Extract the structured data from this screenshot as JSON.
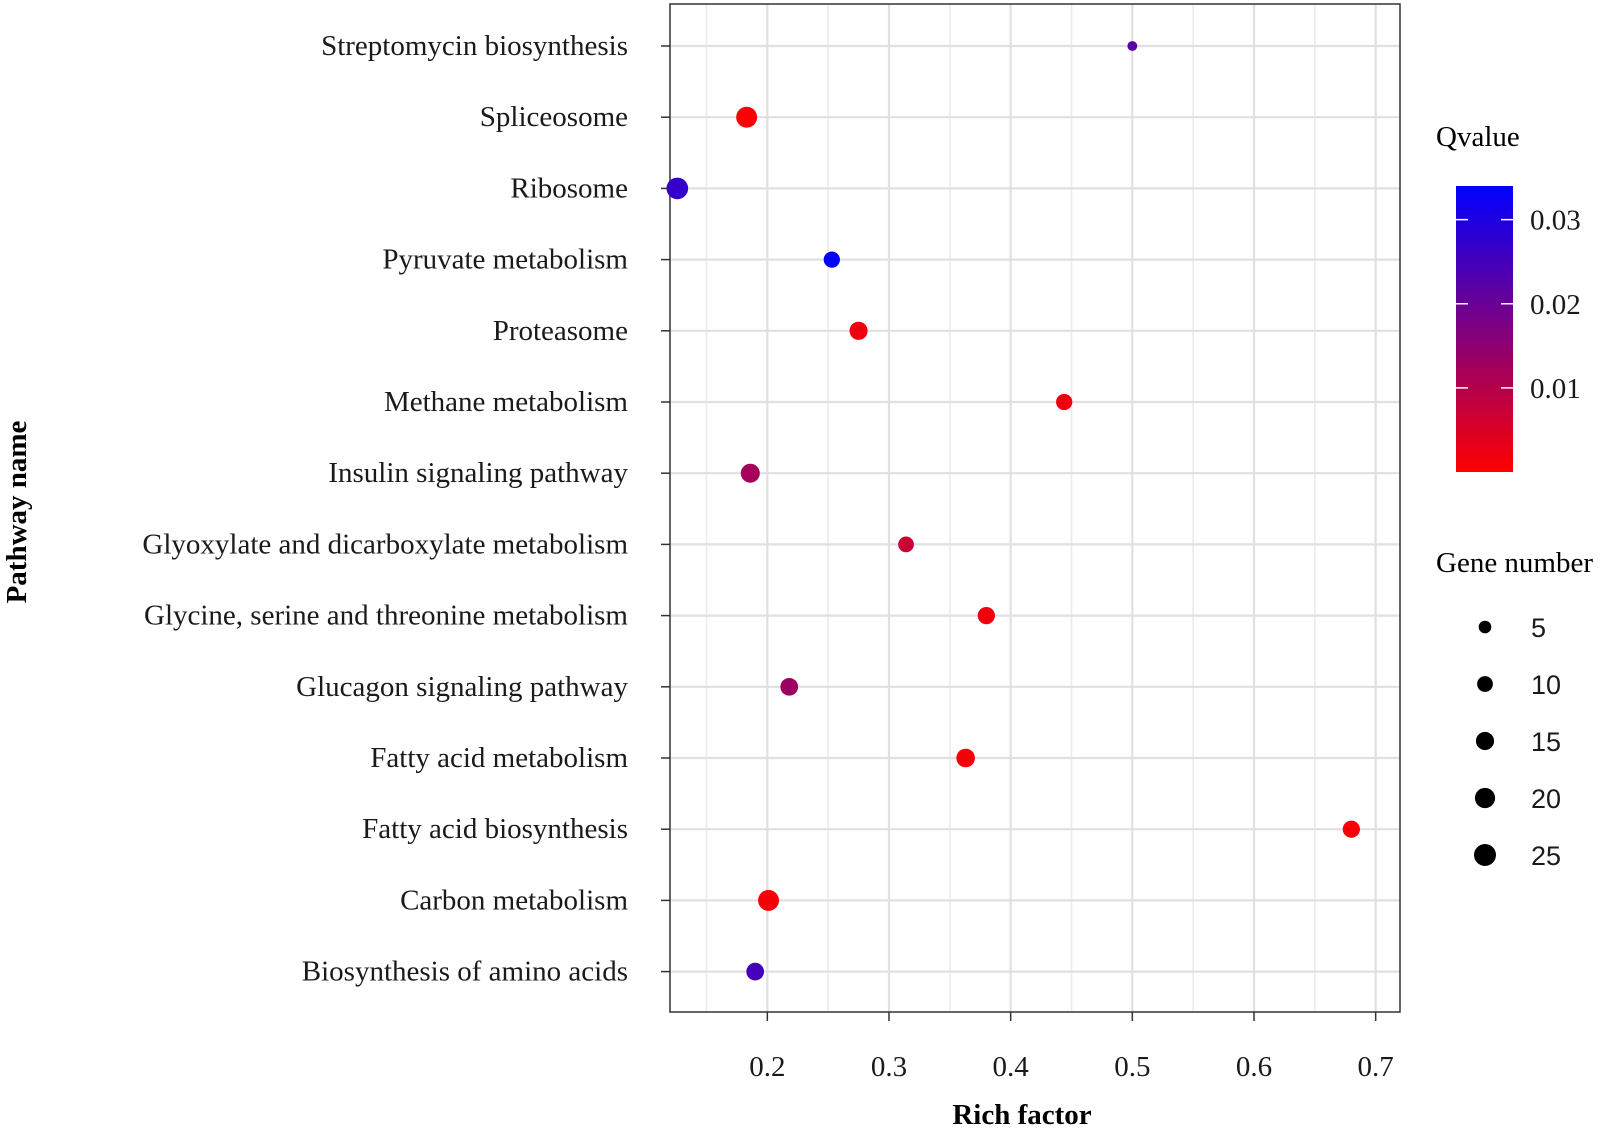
{
  "chart_data": {
    "type": "scatter",
    "title": "",
    "xlabel": "Rich factor",
    "ylabel": "Pathway name",
    "xlim": [
      0.12,
      0.72
    ],
    "xticks": [
      0.2,
      0.3,
      0.4,
      0.5,
      0.6,
      0.7
    ],
    "xtick_labels": [
      "0.2",
      "0.3",
      "0.4",
      "0.5",
      "0.6",
      "0.7"
    ],
    "grid": true,
    "categories": [
      "Streptomycin biosynthesis",
      "Spliceosome",
      "Ribosome",
      "Pyruvate metabolism",
      "Proteasome",
      "Methane metabolism",
      "Insulin signaling pathway",
      "Glyoxylate and dicarboxylate metabolism",
      "Glycine, serine and threonine metabolism",
      "Glucagon signaling pathway",
      "Fatty acid metabolism",
      "Fatty acid biosynthesis",
      "Carbon metabolism",
      "Biosynthesis of amino acids"
    ],
    "points": [
      {
        "pathway": "Streptomycin biosynthesis",
        "rich_factor": 0.5,
        "gene_number": 2,
        "qvalue": 0.022
      },
      {
        "pathway": "Spliceosome",
        "rich_factor": 0.183,
        "gene_number": 22,
        "qvalue": 0.0005
      },
      {
        "pathway": "Ribosome",
        "rich_factor": 0.126,
        "gene_number": 24,
        "qvalue": 0.027
      },
      {
        "pathway": "Pyruvate metabolism",
        "rich_factor": 0.253,
        "gene_number": 11,
        "qvalue": 0.034
      },
      {
        "pathway": "Proteasome",
        "rich_factor": 0.275,
        "gene_number": 15,
        "qvalue": 0.002
      },
      {
        "pathway": "Methane metabolism",
        "rich_factor": 0.444,
        "gene_number": 11,
        "qvalue": 0.002
      },
      {
        "pathway": "Insulin signaling pathway",
        "rich_factor": 0.186,
        "gene_number": 17,
        "qvalue": 0.012
      },
      {
        "pathway": "Glyoxylate and dicarboxylate metabolism",
        "rich_factor": 0.314,
        "gene_number": 10,
        "qvalue": 0.007
      },
      {
        "pathway": "Glycine, serine and threonine metabolism",
        "rich_factor": 0.38,
        "gene_number": 13,
        "qvalue": 0.002
      },
      {
        "pathway": "Glucagon signaling pathway",
        "rich_factor": 0.218,
        "gene_number": 14,
        "qvalue": 0.013
      },
      {
        "pathway": "Fatty acid metabolism",
        "rich_factor": 0.363,
        "gene_number": 16,
        "qvalue": 0.001
      },
      {
        "pathway": "Fatty acid biosynthesis",
        "rich_factor": 0.68,
        "gene_number": 13,
        "qvalue": 0.001
      },
      {
        "pathway": "Carbon metabolism",
        "rich_factor": 0.201,
        "gene_number": 22,
        "qvalue": 0.001
      },
      {
        "pathway": "Biosynthesis of amino acids",
        "rich_factor": 0.19,
        "gene_number": 14,
        "qvalue": 0.025
      }
    ],
    "legend_color": {
      "title": "Qvalue",
      "range": [
        0,
        0.034
      ],
      "ticks": [
        0.01,
        0.02,
        0.03
      ],
      "tick_labels": [
        "0.01",
        "0.02",
        "0.03"
      ],
      "low_color": "#ff0000",
      "high_color": "#0000ff",
      "placement": "right"
    },
    "legend_size": {
      "title": "Gene number",
      "values": [
        5,
        10,
        15,
        20,
        25
      ],
      "labels": [
        "5",
        "10",
        "15",
        "20",
        "25"
      ],
      "placement": "right"
    }
  }
}
